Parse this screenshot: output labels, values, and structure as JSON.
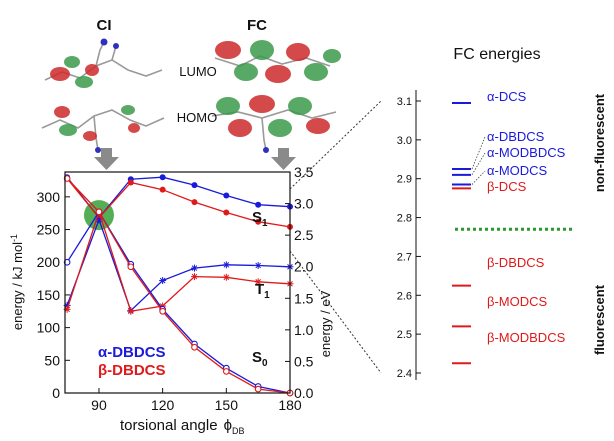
{
  "header": {
    "ci": "CI",
    "fc": "FC"
  },
  "orbitals": {
    "lumo": "LUMO",
    "homo": "HOMO"
  },
  "colors": {
    "blue": "#1a1adc",
    "red": "#e01a1a",
    "green": "#2a9a2a",
    "lobe_red": "#cc2a2a",
    "lobe_green": "#3a9a4a"
  },
  "chart_data": [
    {
      "type": "line",
      "xlabel": "torsional angle",
      "xlabel_symbol": "ϕ",
      "xlabel_sub": "DB",
      "ylabel": "energy / kJ mol",
      "ylabel_sup": "-1",
      "y2label": "energy / eV",
      "xlim": [
        74,
        180
      ],
      "ylim": [
        0,
        338
      ],
      "y2lim": [
        0,
        3.5
      ],
      "x_ticks": [
        "90",
        "120",
        "150",
        "180"
      ],
      "y_ticks": [
        "0",
        "50",
        "100",
        "150",
        "200",
        "250",
        "300"
      ],
      "y2_ticks": [
        "0.0",
        "0.5",
        "1.0",
        "1.5",
        "2.0",
        "2.5",
        "3.0",
        "3.5"
      ],
      "state_labels": {
        "s1_main": "S",
        "s1_sub": "1",
        "t1_main": "T",
        "t1_sub": "1",
        "s0_main": "S",
        "s0_sub": "0"
      },
      "legend": [
        "α-DBDCS",
        "β-DBDCS"
      ],
      "series": [
        {
          "name": "α-DBDCS",
          "state": "S1",
          "color": "#1a1adc",
          "marker": "filled-circle",
          "x": [
            75,
            90,
            105,
            120,
            135,
            150,
            165,
            180
          ],
          "y": [
            330,
            268,
            327,
            330,
            318,
            302,
            288,
            285
          ]
        },
        {
          "name": "β-DBDCS",
          "state": "S1",
          "color": "#e01a1a",
          "marker": "filled-circle",
          "x": [
            75,
            90,
            105,
            120,
            135,
            150,
            165,
            180
          ],
          "y": [
            328,
            268,
            322,
            311,
            292,
            276,
            262,
            254
          ]
        },
        {
          "name": "α-DBDCS",
          "state": "T1",
          "color": "#1a1adc",
          "marker": "star",
          "x": [
            75,
            90,
            105,
            120,
            135,
            150,
            165,
            180
          ],
          "y": [
            134,
            265,
            126,
            172,
            191,
            196,
            195,
            193
          ]
        },
        {
          "name": "β-DBDCS",
          "state": "T1",
          "color": "#e01a1a",
          "marker": "star",
          "x": [
            75,
            90,
            105,
            120,
            135,
            150,
            165,
            180
          ],
          "y": [
            128,
            277,
            125,
            133,
            178,
            177,
            170,
            167
          ]
        },
        {
          "name": "α-DBDCS",
          "state": "S0",
          "color": "#1a1adc",
          "marker": "open-circle",
          "x": [
            75,
            90,
            105,
            120,
            135,
            150,
            165,
            180
          ],
          "y": [
            200,
            277,
            197,
            128,
            75,
            38,
            10,
            0
          ]
        },
        {
          "name": "β-DBDCS",
          "state": "S0",
          "color": "#e01a1a",
          "marker": "open-circle",
          "x": [
            75,
            90,
            105,
            120,
            135,
            150,
            165,
            180
          ],
          "y": [
            328,
            277,
            193,
            125,
            70,
            33,
            6,
            0
          ]
        }
      ],
      "conical_intersection": {
        "x": 90,
        "y": 272,
        "color": "#2a9a2a"
      }
    },
    {
      "type": "level-diagram",
      "title": "FC energies",
      "ylim": [
        2.35,
        3.15
      ],
      "y_ticks": [
        "2.4",
        "2.5",
        "2.6",
        "2.7",
        "2.8",
        "2.9",
        "3.0",
        "3.1"
      ],
      "separator": 2.77,
      "region_labels": {
        "upper": "non-fluorescent",
        "lower": "fluorescent"
      },
      "levels": [
        {
          "label": "α-DCS",
          "value": 3.095,
          "color": "#1a1adc"
        },
        {
          "label": "α-DBDCS",
          "value": 2.925,
          "color": "#1a1adc"
        },
        {
          "label": "α-MODBDCS",
          "value": 2.91,
          "color": "#1a1adc"
        },
        {
          "label": "α-MODCS",
          "value": 2.885,
          "color": "#1a1adc"
        },
        {
          "label": "β-DCS",
          "value": 2.875,
          "color": "#e01a1a"
        },
        {
          "label": "β-DBDCS",
          "value": 2.625,
          "color": "#e01a1a"
        },
        {
          "label": "β-MODCS",
          "value": 2.52,
          "color": "#e01a1a"
        },
        {
          "label": "β-MODBDCS",
          "value": 2.425,
          "color": "#e01a1a"
        }
      ]
    }
  ]
}
